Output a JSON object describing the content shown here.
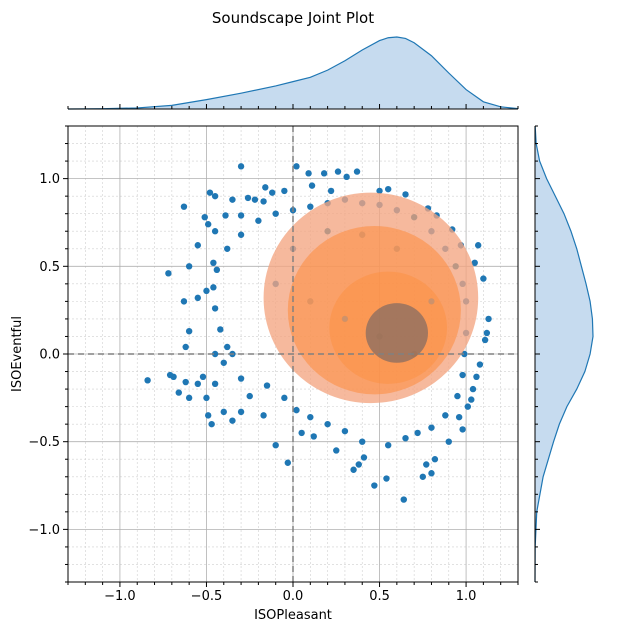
{
  "colors": {
    "scatter": "#1f77b4",
    "kde_light": "#f4a582",
    "kde_mid": "#fd8d3c",
    "kde_dark": "#5d5d66",
    "marginal_fill": "#c6dbef",
    "marginal_line": "#1f77b4",
    "crosshair": "#808080",
    "grid_major": "#b0b0b0",
    "grid_minor": "#d0d0d0"
  },
  "chart_data": {
    "type": "scatter",
    "title": "Soundscape Joint Plot",
    "xlabel": "ISOPleasant",
    "ylabel": "ISOEventful",
    "xlim": [
      -1.3,
      1.3
    ],
    "ylim": [
      -1.3,
      1.3
    ],
    "x_ticks": [
      -1.0,
      -0.5,
      0.0,
      0.5,
      1.0
    ],
    "y_ticks": [
      -1.0,
      -0.5,
      0.0,
      0.5,
      1.0
    ],
    "x_tick_labels": [
      "−1.0",
      "−0.5",
      "0.0",
      "0.5",
      "1.0"
    ],
    "y_tick_labels": [
      "−1.0",
      "−0.5",
      "0.0",
      "0.5",
      "1.0"
    ],
    "grid": true,
    "minor_grid": true,
    "reference_lines": {
      "x": 0,
      "y": 0,
      "style": "dashed"
    },
    "kde": {
      "center": [
        0.6,
        0.12
      ],
      "levels": [
        {
          "level": "outer",
          "cx": 0.45,
          "cy": 0.32,
          "rx": 0.62,
          "ry": 0.6
        },
        {
          "level": "middle",
          "cx": 0.47,
          "cy": 0.25,
          "rx": 0.5,
          "ry": 0.48
        },
        {
          "level": "inner",
          "cx": 0.55,
          "cy": 0.15,
          "rx": 0.34,
          "ry": 0.32
        },
        {
          "level": "core",
          "cx": 0.6,
          "cy": 0.12,
          "rx": 0.18,
          "ry": 0.17
        }
      ]
    },
    "scatter_points": [
      [
        0.02,
        1.07
      ],
      [
        -0.3,
        1.07
      ],
      [
        0.09,
        1.03
      ],
      [
        0.18,
        1.03
      ],
      [
        0.26,
        1.04
      ],
      [
        0.31,
        1.01
      ],
      [
        0.37,
        1.04
      ],
      [
        -0.26,
        0.89
      ],
      [
        -0.16,
        0.95
      ],
      [
        -0.17,
        0.87
      ],
      [
        -0.22,
        0.88
      ],
      [
        -0.12,
        0.92
      ],
      [
        -0.05,
        0.93
      ],
      [
        0.11,
        0.96
      ],
      [
        0.22,
        0.93
      ],
      [
        0.5,
        0.93
      ],
      [
        0.55,
        0.94
      ],
      [
        0.65,
        0.91
      ],
      [
        0.78,
        0.83
      ],
      [
        0.83,
        0.79
      ],
      [
        0.92,
        0.71
      ],
      [
        0.97,
        0.62
      ],
      [
        1.07,
        0.62
      ],
      [
        1.05,
        0.52
      ],
      [
        1.1,
        0.43
      ],
      [
        1.12,
        0.12
      ],
      [
        1.13,
        0.2
      ],
      [
        1.11,
        0.08
      ],
      [
        1.08,
        -0.06
      ],
      [
        1.06,
        -0.13
      ],
      [
        1.04,
        -0.2
      ],
      [
        1.03,
        -0.26
      ],
      [
        1.01,
        -0.3
      ],
      [
        0.96,
        -0.36
      ],
      [
        0.98,
        -0.43
      ],
      [
        0.9,
        -0.5
      ],
      [
        0.82,
        -0.6
      ],
      [
        0.77,
        -0.63
      ],
      [
        0.8,
        -0.68
      ],
      [
        0.75,
        -0.7
      ],
      [
        0.64,
        -0.83
      ],
      [
        0.54,
        -0.71
      ],
      [
        0.47,
        -0.75
      ],
      [
        0.38,
        -0.63
      ],
      [
        0.35,
        -0.66
      ],
      [
        0.41,
        -0.59
      ],
      [
        0.25,
        -0.55
      ],
      [
        0.12,
        -0.47
      ],
      [
        0.05,
        -0.45
      ],
      [
        -0.03,
        -0.62
      ],
      [
        -0.1,
        -0.52
      ],
      [
        -0.17,
        -0.35
      ],
      [
        -0.3,
        -0.33
      ],
      [
        -0.35,
        -0.38
      ],
      [
        -0.4,
        -0.33
      ],
      [
        -0.5,
        -0.25
      ],
      [
        -0.47,
        -0.4
      ],
      [
        -0.49,
        -0.35
      ],
      [
        -0.6,
        -0.25
      ],
      [
        -0.55,
        -0.17
      ],
      [
        -0.45,
        -0.17
      ],
      [
        -0.52,
        -0.13
      ],
      [
        -0.62,
        -0.16
      ],
      [
        -0.66,
        -0.22
      ],
      [
        -0.69,
        -0.13
      ],
      [
        -0.71,
        -0.12
      ],
      [
        -0.84,
        -0.15
      ],
      [
        -0.62,
        0.04
      ],
      [
        -0.6,
        0.13
      ],
      [
        -0.63,
        0.3
      ],
      [
        -0.55,
        0.32
      ],
      [
        -0.5,
        0.36
      ],
      [
        -0.6,
        0.5
      ],
      [
        -0.55,
        0.62
      ],
      [
        -0.45,
        0.7
      ],
      [
        -0.51,
        0.78
      ],
      [
        -0.49,
        0.74
      ],
      [
        -0.39,
        0.79
      ],
      [
        -0.3,
        0.79
      ],
      [
        -0.63,
        0.84
      ],
      [
        -0.45,
        0.9
      ],
      [
        -0.48,
        0.92
      ],
      [
        -0.35,
        0.88
      ],
      [
        -0.46,
        0.52
      ],
      [
        -0.72,
        0.46
      ],
      [
        -0.45,
        0.0
      ],
      [
        -0.4,
        -0.05
      ],
      [
        -0.35,
        0.0
      ],
      [
        -0.3,
        -0.14
      ],
      [
        -0.25,
        -0.24
      ],
      [
        -0.15,
        -0.18
      ],
      [
        -0.05,
        -0.25
      ],
      [
        0.02,
        -0.32
      ],
      [
        0.1,
        -0.36
      ],
      [
        0.2,
        -0.4
      ],
      [
        0.3,
        -0.44
      ],
      [
        0.4,
        -0.5
      ],
      [
        0.55,
        -0.52
      ],
      [
        0.65,
        -0.48
      ],
      [
        0.72,
        -0.45
      ],
      [
        0.8,
        -0.42
      ],
      [
        0.88,
        -0.35
      ],
      [
        0.95,
        -0.24
      ],
      [
        0.98,
        -0.12
      ],
      [
        0.99,
        0.0
      ],
      [
        1.0,
        0.12
      ],
      [
        1.0,
        0.3
      ],
      [
        0.98,
        0.4
      ],
      [
        0.94,
        0.5
      ],
      [
        0.88,
        0.6
      ],
      [
        0.8,
        0.7
      ],
      [
        0.7,
        0.78
      ],
      [
        0.6,
        0.82
      ],
      [
        0.5,
        0.85
      ],
      [
        0.4,
        0.86
      ],
      [
        0.3,
        0.88
      ],
      [
        0.2,
        0.86
      ],
      [
        0.1,
        0.84
      ],
      [
        0.0,
        0.82
      ],
      [
        -0.1,
        0.8
      ],
      [
        -0.2,
        0.76
      ],
      [
        -0.3,
        0.68
      ],
      [
        -0.38,
        0.6
      ],
      [
        -0.44,
        0.48
      ],
      [
        -0.46,
        0.38
      ],
      [
        -0.45,
        0.26
      ],
      [
        -0.42,
        0.14
      ],
      [
        -0.38,
        0.04
      ],
      [
        0.0,
        0.6
      ],
      [
        0.2,
        0.7
      ],
      [
        0.4,
        0.68
      ],
      [
        0.6,
        0.6
      ],
      [
        0.3,
        0.2
      ],
      [
        0.5,
        0.1
      ],
      [
        0.7,
        0.0
      ],
      [
        0.8,
        0.3
      ],
      [
        0.1,
        0.3
      ],
      [
        -0.1,
        0.4
      ]
    ],
    "marginal_x": {
      "type": "kde",
      "x": [
        -1.3,
        -1.1,
        -0.9,
        -0.7,
        -0.5,
        -0.3,
        -0.1,
        0.0,
        0.1,
        0.2,
        0.3,
        0.4,
        0.5,
        0.55,
        0.6,
        0.65,
        0.7,
        0.8,
        0.9,
        1.0,
        1.1,
        1.2,
        1.3
      ],
      "density": [
        0.0,
        0.003,
        0.015,
        0.05,
        0.13,
        0.22,
        0.32,
        0.38,
        0.44,
        0.54,
        0.67,
        0.82,
        0.95,
        0.99,
        1.0,
        0.98,
        0.92,
        0.74,
        0.5,
        0.27,
        0.1,
        0.03,
        0.005
      ]
    },
    "marginal_y": {
      "type": "kde",
      "y": [
        -1.3,
        -1.1,
        -0.9,
        -0.7,
        -0.5,
        -0.4,
        -0.3,
        -0.2,
        -0.1,
        0.0,
        0.1,
        0.2,
        0.3,
        0.4,
        0.5,
        0.6,
        0.7,
        0.8,
        0.9,
        1.0,
        1.1,
        1.2,
        1.3
      ],
      "density": [
        0.0,
        0.003,
        0.03,
        0.14,
        0.32,
        0.42,
        0.55,
        0.72,
        0.86,
        0.95,
        1.0,
        0.99,
        0.95,
        0.88,
        0.8,
        0.72,
        0.62,
        0.5,
        0.35,
        0.2,
        0.08,
        0.02,
        0.003
      ]
    }
  }
}
